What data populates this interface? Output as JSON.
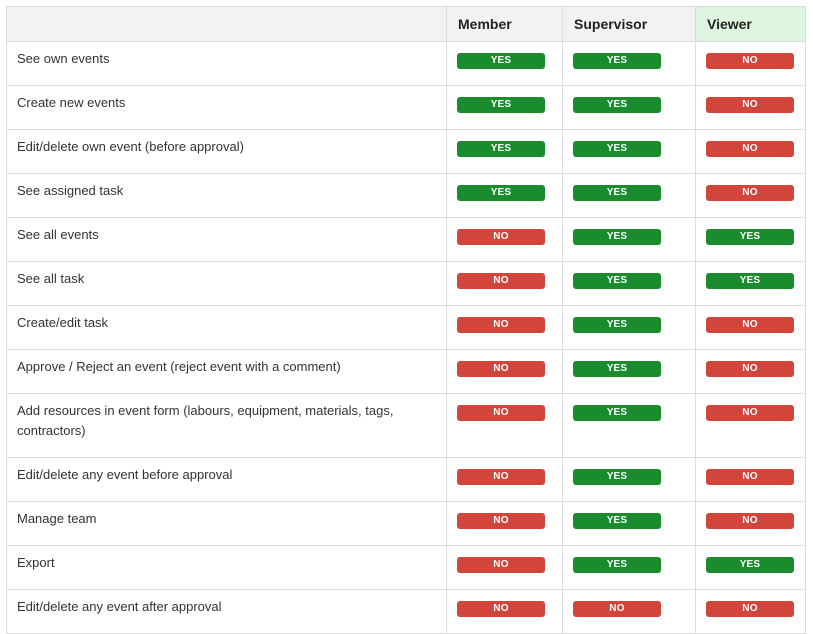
{
  "columns": [
    "Member",
    "Supervisor",
    "Viewer"
  ],
  "colors": {
    "yes": "#1a8c2e",
    "no": "#d2453b",
    "viewer_header": "#dff5df"
  },
  "rows": [
    {
      "label": "See own events",
      "values": [
        "YES",
        "YES",
        "NO"
      ]
    },
    {
      "label": "Create new events",
      "values": [
        "YES",
        "YES",
        "NO"
      ]
    },
    {
      "label": "Edit/delete own event (before approval)",
      "values": [
        "YES",
        "YES",
        "NO"
      ]
    },
    {
      "label": "See assigned task",
      "values": [
        "YES",
        "YES",
        "NO"
      ]
    },
    {
      "label": "See all events",
      "values": [
        "NO",
        "YES",
        "YES"
      ]
    },
    {
      "label": "See all task",
      "values": [
        "NO",
        "YES",
        "YES"
      ]
    },
    {
      "label": "Create/edit task",
      "values": [
        "NO",
        "YES",
        "NO"
      ]
    },
    {
      "label": "Approve / Reject an event (reject event with a comment)",
      "values": [
        "NO",
        "YES",
        "NO"
      ]
    },
    {
      "label": "Add resources in event form (labours, equipment, materials,  tags, contractors)",
      "values": [
        "NO",
        "YES",
        "NO"
      ]
    },
    {
      "label": "Edit/delete any event before approval",
      "values": [
        "NO",
        "YES",
        "NO"
      ]
    },
    {
      "label": "Manage team",
      "values": [
        "NO",
        "YES",
        "NO"
      ]
    },
    {
      "label": "Export",
      "values": [
        "NO",
        "YES",
        "YES"
      ]
    },
    {
      "label": "Edit/delete any event after approval",
      "values": [
        "NO",
        "NO",
        "NO"
      ]
    }
  ]
}
